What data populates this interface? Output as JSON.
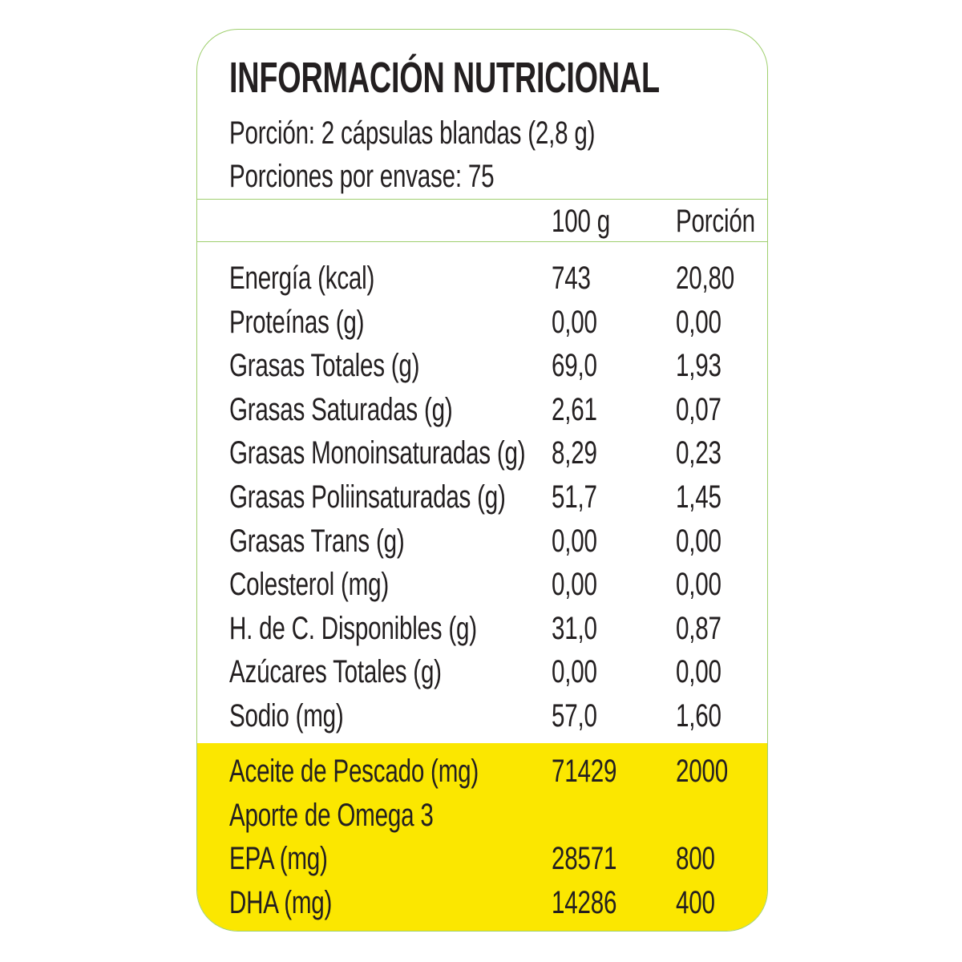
{
  "title": "INFORMACIÓN NUTRICIONAL",
  "serving_size": "Porción: 2 cápsulas blandas (2,8 g)",
  "servings_per_container": "Porciones por envase: 75",
  "columns": {
    "per_100g": "100 g",
    "per_serving": "Porción"
  },
  "nutrients": [
    {
      "name": "Energía (kcal)",
      "per_100g": "743",
      "per_serving": "20,80"
    },
    {
      "name": "Proteínas (g)",
      "per_100g": "0,00",
      "per_serving": "0,00"
    },
    {
      "name": "Grasas Totales (g)",
      "per_100g": "69,0",
      "per_serving": "1,93"
    },
    {
      "name": "Grasas Saturadas (g)",
      "per_100g": "2,61",
      "per_serving": "0,07"
    },
    {
      "name": "Grasas Monoinsaturadas (g)",
      "per_100g": "8,29",
      "per_serving": "0,23"
    },
    {
      "name": "Grasas Poliinsaturadas (g)",
      "per_100g": "51,7",
      "per_serving": "1,45"
    },
    {
      "name": "Grasas Trans (g)",
      "per_100g": "0,00",
      "per_serving": "0,00"
    },
    {
      "name": "Colesterol (mg)",
      "per_100g": "0,00",
      "per_serving": "0,00"
    },
    {
      "name": "H. de C. Disponibles (g)",
      "per_100g": "31,0",
      "per_serving": "0,87"
    },
    {
      "name": "Azúcares Totales (g)",
      "per_100g": "0,00",
      "per_serving": "0,00"
    },
    {
      "name": "Sodio (mg)",
      "per_100g": "57,0",
      "per_serving": "1,60"
    }
  ],
  "highlight": [
    {
      "name": "Aceite de Pescado (mg)",
      "per_100g": "71429",
      "per_serving": "2000"
    },
    {
      "name": "Aporte de Omega 3",
      "per_100g": "",
      "per_serving": ""
    },
    {
      "name": "EPA (mg)",
      "per_100g": "28571",
      "per_serving": "800"
    },
    {
      "name": "DHA (mg)",
      "per_100g": "14286",
      "per_serving": "400"
    }
  ],
  "colors": {
    "border": "#9fcf6e",
    "highlight_bg": "#fbe700",
    "text": "#231f20"
  }
}
